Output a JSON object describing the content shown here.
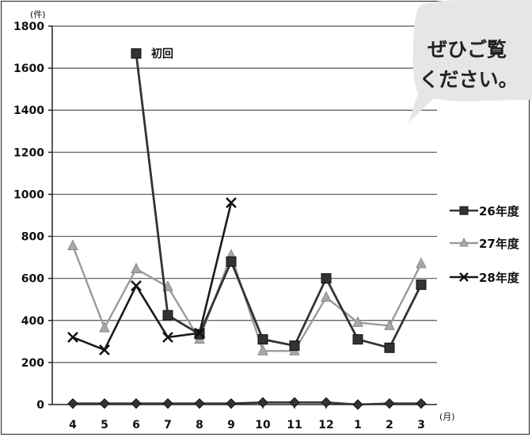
{
  "chart_data": {
    "type": "line",
    "y_unit": "(件)",
    "x_unit": "(月)",
    "categories": [
      "4",
      "5",
      "6",
      "7",
      "8",
      "9",
      "10",
      "11",
      "12",
      "1",
      "2",
      "3"
    ],
    "ylim": [
      0,
      1800
    ],
    "yticks": [
      0,
      200,
      400,
      600,
      800,
      1000,
      1200,
      1400,
      1600,
      1800
    ],
    "grid": true,
    "legend_position": "right",
    "series": [
      {
        "name": "26年度",
        "marker": "square",
        "color": "#333333",
        "values": [
          null,
          null,
          1670,
          425,
          335,
          680,
          310,
          280,
          600,
          310,
          270,
          570
        ]
      },
      {
        "name": "27年度",
        "marker": "triangle",
        "color": "#9a9a9a",
        "values": [
          755,
          365,
          645,
          560,
          310,
          710,
          255,
          255,
          510,
          390,
          375,
          670
        ]
      },
      {
        "name": "28年度",
        "marker": "x",
        "color": "#1a1a1a",
        "values": [
          320,
          260,
          565,
          320,
          340,
          960,
          null,
          null,
          null,
          null,
          null,
          null
        ]
      },
      {
        "name": "",
        "marker": "diamond",
        "color": "#333333",
        "values": [
          5,
          5,
          5,
          5,
          5,
          5,
          10,
          10,
          10,
          0,
          5,
          5
        ]
      }
    ],
    "annotations": [
      {
        "text": "初回",
        "series": 0,
        "category": "6"
      }
    ]
  },
  "callout": {
    "lines": [
      "ぜひご覧",
      "ください。"
    ]
  }
}
